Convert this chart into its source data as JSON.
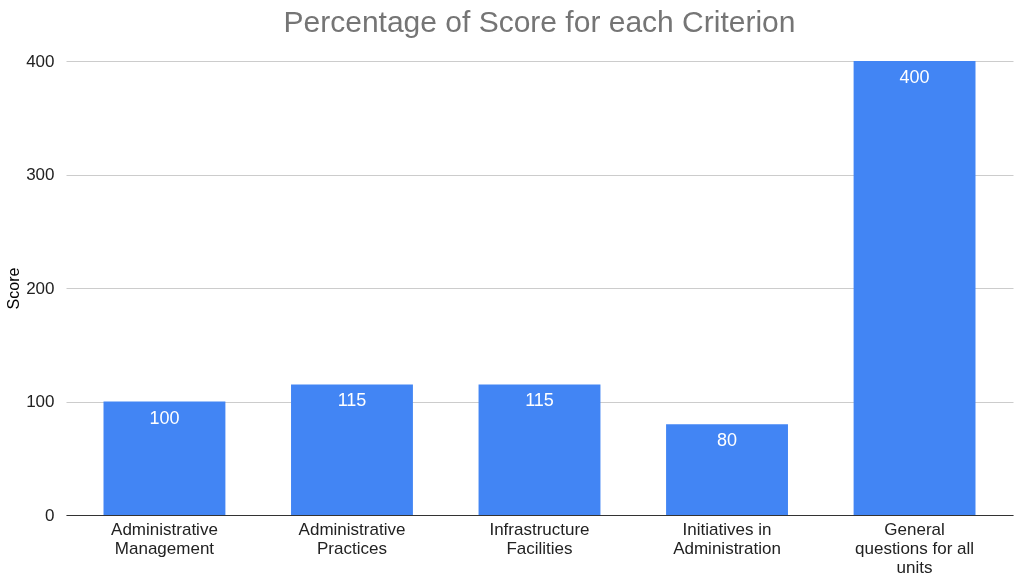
{
  "chart_data": {
    "type": "bar",
    "title": "Percentage of Score for each Criterion",
    "ylabel": "Score",
    "categories": [
      "Administrative\nManagement",
      "Administrative\nPractices",
      "Infrastructure\nFacilities",
      "Initiatives in\nAdministration",
      "General\nquestions for all\nunits"
    ],
    "values": [
      100,
      115,
      115,
      80,
      400
    ],
    "color": "#4285f4",
    "ylim": [
      0,
      400
    ],
    "yticks": [
      0,
      100,
      200,
      300,
      400
    ],
    "grid": "y",
    "data_labels": true
  }
}
